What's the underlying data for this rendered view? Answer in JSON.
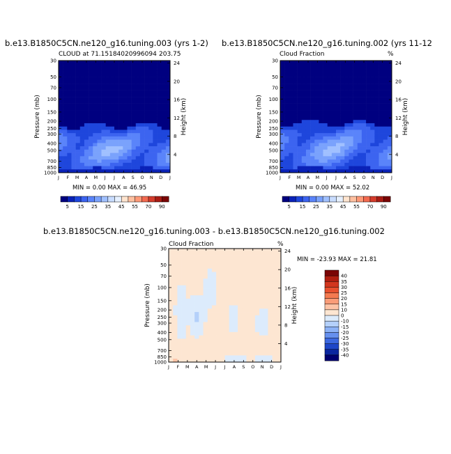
{
  "panels": [
    {
      "title": "b.e13.B1850C5CN.ne120_g16.tuning.003 (yrs 1-2)",
      "left_label": "CLOUD at 71.15184020996094",
      "right_label": "203.75",
      "min_max": "MIN =   0.00 MAX =  46.95"
    },
    {
      "title": "b.e13.B1850C5CN.ne120_g16.tuning.002 (yrs 11-12",
      "left_label": "Cloud Fraction",
      "right_label": "%",
      "min_max": "MIN =   0.00 MAX =  52.02"
    },
    {
      "title": "b.e13.B1850C5CN.ne120_g16.tuning.003 - b.e13.B1850C5CN.ne120_g16.tuning.002",
      "left_label": "Cloud Fraction",
      "right_label": "%",
      "min_max": "MIN = -23.93 MAX =  21.81"
    }
  ],
  "chart_data": {
    "type": "heatmap",
    "xlabels": [
      "J",
      "F",
      "M",
      "A",
      "M",
      "J",
      "J",
      "A",
      "S",
      "O",
      "N",
      "D",
      "J"
    ],
    "ylabel": "Pressure (mb)",
    "ylabel_right": "Height (km)",
    "pressure_ticks": [
      30,
      50,
      70,
      100,
      150,
      200,
      250,
      300,
      400,
      500,
      700,
      850,
      1000
    ],
    "height_ticks": [
      4,
      8,
      12,
      16,
      20,
      24
    ],
    "colorbar_abs": {
      "labels": [
        "5",
        "15",
        "25",
        "35",
        "45",
        "55",
        "70",
        "90"
      ],
      "colors": [
        "#000080",
        "#0a22b8",
        "#1e46dc",
        "#3c64f0",
        "#5a84fa",
        "#7aa2fc",
        "#a0c0ff",
        "#c8dcff",
        "#e6f0ff",
        "#ffe4cf",
        "#ffc0a0",
        "#ff9a78",
        "#f26a50",
        "#d43c2c",
        "#a81c14",
        "#7a0505"
      ]
    },
    "colorbar_diff": {
      "labels": [
        "40",
        "35",
        "30",
        "25",
        "20",
        "15",
        "10",
        "0",
        "-10",
        "-15",
        "-20",
        "-25",
        "-30",
        "-35",
        "-40"
      ],
      "colors": [
        "#7a0505",
        "#b01e10",
        "#d2361e",
        "#e8502e",
        "#f47a50",
        "#fa9c78",
        "#fdc3a6",
        "#fde6d2",
        "#dcebfc",
        "#b4d0fa",
        "#8cb2f6",
        "#6690ee",
        "#3c68e0",
        "#1e46c8",
        "#0a26a0",
        "#000070"
      ]
    },
    "diff_range": [
      -23.93,
      21.81
    ]
  }
}
